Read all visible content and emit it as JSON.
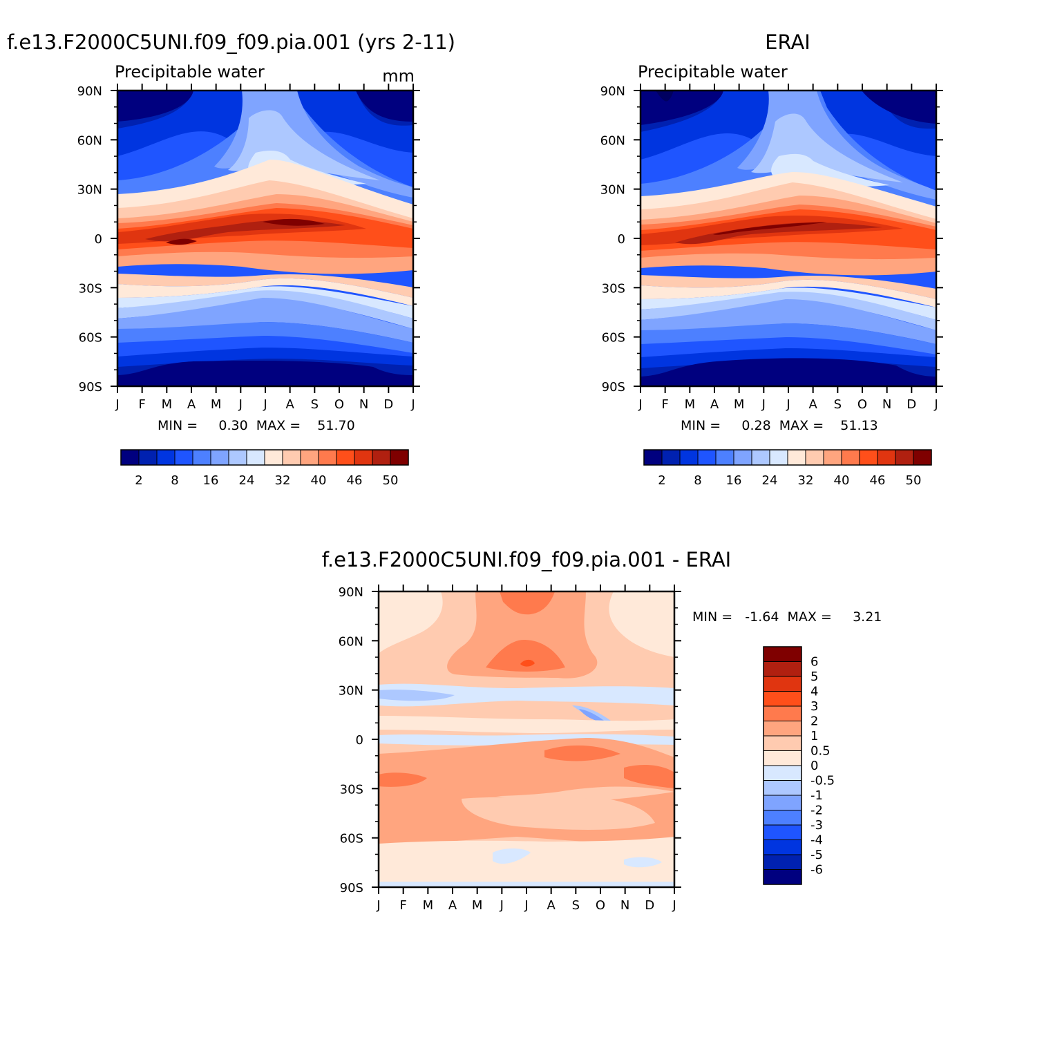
{
  "panels": {
    "model": {
      "title": "f.e13.F2000C5UNI.f09_f09.pia.001 (yrs 2-11)",
      "left_label": "Precipitable water",
      "right_label": "mm",
      "stats": "MIN =     0.30  MAX =    51.70"
    },
    "obs": {
      "title": "ERAI",
      "left_label": "Precipitable water",
      "stats": "MIN =     0.28  MAX =    51.13"
    },
    "diff": {
      "title": "f.e13.F2000C5UNI.f09_f09.pia.001 - ERAI",
      "stats": "MIN =   -1.64  MAX =     3.21"
    }
  },
  "axes": {
    "months": [
      "J",
      "F",
      "M",
      "A",
      "M",
      "J",
      "J",
      "A",
      "S",
      "O",
      "N",
      "D",
      "J"
    ],
    "lats": [
      "90N",
      "60N",
      "30N",
      "0",
      "30S",
      "60S",
      "90S"
    ]
  },
  "colorbar_main": {
    "labels": [
      "2",
      "8",
      "16",
      "24",
      "32",
      "40",
      "46",
      "50"
    ],
    "colors": [
      "#00007f",
      "#0021b0",
      "#0035e0",
      "#1f55ff",
      "#4d80ff",
      "#7fa4ff",
      "#adc8ff",
      "#d8e8ff",
      "#ffe9d9",
      "#ffcbb0",
      "#ffa57f",
      "#ff7a4d",
      "#ff4f1a",
      "#e03510",
      "#b02010",
      "#7f0000"
    ]
  },
  "colorbar_diff": {
    "labels": [
      "6",
      "5",
      "4",
      "3",
      "2",
      "1",
      "0.5",
      "0",
      "-0.5",
      "-1",
      "-2",
      "-3",
      "-4",
      "-5",
      "-6"
    ],
    "colors": [
      "#7f0000",
      "#b02010",
      "#e03510",
      "#ff4f1a",
      "#ff7a4d",
      "#ffa57f",
      "#ffcbb0",
      "#ffe9d9",
      "#d8e8ff",
      "#adc8ff",
      "#7fa4ff",
      "#4d80ff",
      "#1f55ff",
      "#0035e0",
      "#0021b0",
      "#00007f"
    ]
  },
  "chart_data": [
    {
      "type": "heatmap",
      "title": "f.e13.F2000C5UNI.f09_f09.pia.001 (yrs 2-11)",
      "subtitle": "Precipitable water",
      "units": "mm",
      "x": [
        "J",
        "F",
        "M",
        "A",
        "M",
        "J",
        "J",
        "A",
        "S",
        "O",
        "N",
        "D",
        "J"
      ],
      "y": [
        "90N",
        "60N",
        "30N",
        "0",
        "30S",
        "60S",
        "90S"
      ],
      "min": 0.3,
      "max": 51.7
    },
    {
      "type": "heatmap",
      "title": "ERAI",
      "subtitle": "Precipitable water",
      "x": [
        "J",
        "F",
        "M",
        "A",
        "M",
        "J",
        "J",
        "A",
        "S",
        "O",
        "N",
        "D",
        "J"
      ],
      "y": [
        "90N",
        "60N",
        "30N",
        "0",
        "30S",
        "60S",
        "90S"
      ],
      "min": 0.28,
      "max": 51.13
    },
    {
      "type": "heatmap",
      "title": "f.e13.F2000C5UNI.f09_f09.pia.001 - ERAI",
      "x": [
        "J",
        "F",
        "M",
        "A",
        "M",
        "J",
        "J",
        "A",
        "S",
        "O",
        "N",
        "D",
        "J"
      ],
      "y": [
        "90N",
        "60N",
        "30N",
        "0",
        "30S",
        "60S",
        "90S"
      ],
      "min": -1.64,
      "max": 3.21
    }
  ]
}
